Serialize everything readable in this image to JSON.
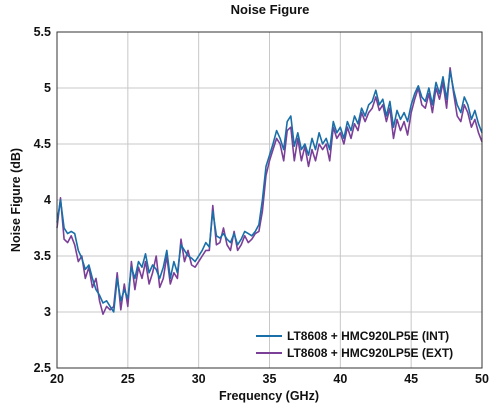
{
  "chart_data": {
    "type": "line",
    "title": "Noise Figure",
    "xlabel": "Frequency (GHz)",
    "ylabel": "Noise Figure (dB)",
    "xlim": [
      20,
      50
    ],
    "ylim": [
      2.5,
      5.5
    ],
    "xticks": [
      20,
      25,
      30,
      35,
      40,
      45,
      50
    ],
    "yticks": [
      2.5,
      3,
      3.5,
      4,
      4.5,
      5,
      5.5
    ],
    "grid": true,
    "legend_position": "bottom-right",
    "series": [
      {
        "name": "LT8608 + HMC920LP5E (INT)",
        "color": "#1a6fa8",
        "x": [
          20,
          20.25,
          20.5,
          20.75,
          21,
          21.25,
          21.5,
          21.75,
          22,
          22.25,
          22.5,
          22.75,
          23,
          23.25,
          23.5,
          23.75,
          24,
          24.25,
          24.5,
          24.75,
          25,
          25.25,
          25.5,
          25.75,
          26,
          26.25,
          26.5,
          26.75,
          27,
          27.25,
          27.5,
          27.75,
          28,
          28.25,
          28.5,
          28.75,
          29,
          29.25,
          29.5,
          29.75,
          30,
          30.25,
          30.5,
          30.75,
          31,
          31.25,
          31.5,
          31.75,
          32,
          32.25,
          32.5,
          32.75,
          33,
          33.25,
          33.5,
          33.75,
          34,
          34.25,
          34.5,
          34.75,
          35,
          35.25,
          35.5,
          35.75,
          36,
          36.25,
          36.5,
          36.75,
          37,
          37.25,
          37.5,
          37.75,
          38,
          38.25,
          38.5,
          38.75,
          39,
          39.25,
          39.5,
          39.75,
          40,
          40.25,
          40.5,
          40.75,
          41,
          41.25,
          41.5,
          41.75,
          42,
          42.25,
          42.5,
          42.75,
          43,
          43.25,
          43.5,
          43.75,
          44,
          44.25,
          44.5,
          44.75,
          45,
          45.25,
          45.5,
          45.75,
          46,
          46.25,
          46.5,
          46.75,
          47,
          47.25,
          47.5,
          47.75,
          48,
          48.25,
          48.5,
          48.75,
          49,
          49.25,
          49.5,
          49.75,
          50
        ],
        "values": [
          3.8,
          4.0,
          3.75,
          3.7,
          3.72,
          3.7,
          3.55,
          3.48,
          3.38,
          3.42,
          3.3,
          3.2,
          3.15,
          3.08,
          3.1,
          3.05,
          3.0,
          3.3,
          3.1,
          3.2,
          3.12,
          3.4,
          3.3,
          3.45,
          3.4,
          3.52,
          3.35,
          3.42,
          3.38,
          3.3,
          3.4,
          3.55,
          3.3,
          3.45,
          3.35,
          3.6,
          3.55,
          3.5,
          3.48,
          3.45,
          3.5,
          3.55,
          3.62,
          3.58,
          3.9,
          3.68,
          3.66,
          3.7,
          3.65,
          3.62,
          3.7,
          3.6,
          3.65,
          3.72,
          3.7,
          3.68,
          3.72,
          3.78,
          4.0,
          4.3,
          4.4,
          4.5,
          4.62,
          4.55,
          4.45,
          4.7,
          4.75,
          4.48,
          4.6,
          4.45,
          4.5,
          4.4,
          4.55,
          4.45,
          4.6,
          4.5,
          4.55,
          4.45,
          4.7,
          4.6,
          4.65,
          4.55,
          4.7,
          4.62,
          4.75,
          4.68,
          4.82,
          4.75,
          4.85,
          4.88,
          4.98,
          4.85,
          4.9,
          4.75,
          4.88,
          4.65,
          4.8,
          4.72,
          4.78,
          4.7,
          4.85,
          4.95,
          5.02,
          4.92,
          4.88,
          5.0,
          4.85,
          5.05,
          4.95,
          5.1,
          4.9,
          5.15,
          4.98,
          4.85,
          4.78,
          4.92,
          4.85,
          4.72,
          4.8,
          4.68,
          4.6
        ],
        "values_note": ""
      },
      {
        "name": "LT8608 + HMC920LP5E (EXT)",
        "color": "#7b3f98",
        "x": [
          20,
          20.25,
          20.5,
          20.75,
          21,
          21.25,
          21.5,
          21.75,
          22,
          22.25,
          22.5,
          22.75,
          23,
          23.25,
          23.5,
          23.75,
          24,
          24.25,
          24.5,
          24.75,
          25,
          25.25,
          25.5,
          25.75,
          26,
          26.25,
          26.5,
          26.75,
          27,
          27.25,
          27.5,
          27.75,
          28,
          28.25,
          28.5,
          28.75,
          29,
          29.25,
          29.5,
          29.75,
          30,
          30.25,
          30.5,
          30.75,
          31,
          31.25,
          31.5,
          31.75,
          32,
          32.25,
          32.5,
          32.75,
          33,
          33.25,
          33.5,
          33.75,
          34,
          34.25,
          34.5,
          34.75,
          35,
          35.25,
          35.5,
          35.75,
          36,
          36.25,
          36.5,
          36.75,
          37,
          37.25,
          37.5,
          37.75,
          38,
          38.25,
          38.5,
          38.75,
          39,
          39.25,
          39.5,
          39.75,
          40,
          40.25,
          40.5,
          40.75,
          41,
          41.25,
          41.5,
          41.75,
          42,
          42.25,
          42.5,
          42.75,
          43,
          43.25,
          43.5,
          43.75,
          44,
          44.25,
          44.5,
          44.75,
          45,
          45.25,
          45.5,
          45.75,
          46,
          46.25,
          46.5,
          46.75,
          47,
          47.25,
          47.5,
          47.75,
          48,
          48.25,
          48.5,
          48.75,
          49,
          49.25,
          49.5,
          49.75,
          50
        ],
        "values": [
          3.75,
          4.02,
          3.65,
          3.62,
          3.68,
          3.6,
          3.45,
          3.5,
          3.3,
          3.4,
          3.22,
          3.3,
          3.1,
          2.98,
          3.05,
          3.02,
          3.05,
          3.35,
          3.02,
          3.25,
          3.05,
          3.45,
          3.2,
          3.4,
          3.3,
          3.45,
          3.25,
          3.35,
          3.5,
          3.22,
          3.3,
          3.5,
          3.25,
          3.35,
          3.3,
          3.65,
          3.45,
          3.55,
          3.42,
          3.4,
          3.45,
          3.5,
          3.55,
          3.55,
          3.95,
          3.6,
          3.62,
          3.75,
          3.6,
          3.55,
          3.72,
          3.55,
          3.6,
          3.68,
          3.62,
          3.65,
          3.7,
          3.72,
          3.9,
          4.22,
          4.35,
          4.45,
          4.55,
          4.5,
          4.35,
          4.62,
          4.65,
          4.35,
          4.55,
          4.35,
          4.48,
          4.3,
          4.45,
          4.35,
          4.5,
          4.45,
          4.5,
          4.35,
          4.65,
          4.55,
          4.6,
          4.5,
          4.65,
          4.55,
          4.68,
          4.62,
          4.78,
          4.7,
          4.78,
          4.82,
          4.92,
          4.8,
          4.85,
          4.7,
          4.82,
          4.55,
          4.72,
          4.62,
          4.7,
          4.58,
          4.78,
          4.9,
          5.0,
          4.85,
          4.82,
          4.95,
          4.78,
          5.0,
          4.9,
          5.05,
          4.82,
          5.18,
          4.95,
          4.75,
          4.7,
          4.85,
          4.78,
          4.65,
          4.72,
          4.6,
          4.52
        ]
      }
    ]
  }
}
